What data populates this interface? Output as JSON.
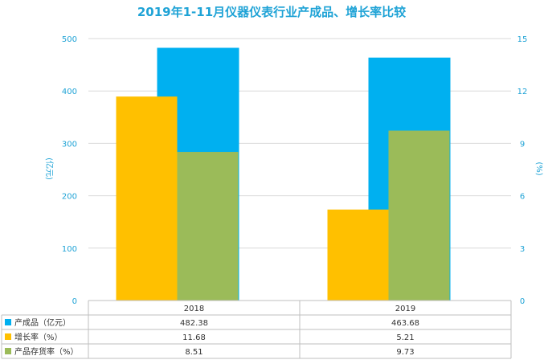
{
  "chart_data": {
    "type": "bar",
    "title": "2019年1-11月仪器仪表行业产成品、增长率比较",
    "categories": [
      "2018",
      "2019"
    ],
    "y_left": {
      "label": "(亿元)",
      "ylim": [
        0,
        500
      ],
      "ticks": [
        "0",
        "100",
        "200",
        "300",
        "400",
        "500"
      ]
    },
    "y_right": {
      "label": "(%)",
      "ylim": [
        0,
        15
      ],
      "ticks": [
        "0",
        "3",
        "6",
        "9",
        "12",
        "15"
      ]
    },
    "series": [
      {
        "name": "产成品（亿元）",
        "axis": "left",
        "color": "#00b0f0",
        "values": [
          482.38,
          463.68
        ],
        "labels": [
          "482.38",
          "463.68"
        ]
      },
      {
        "name": "增长率（%）",
        "axis": "right",
        "color": "#ffc000",
        "values": [
          11.68,
          5.21
        ],
        "labels": [
          "11.68",
          "5.21"
        ]
      },
      {
        "name": "产品存货率（%）",
        "axis": "right",
        "color": "#9bbb59",
        "values": [
          8.51,
          9.73
        ],
        "labels": [
          "8.51",
          "9.73"
        ]
      }
    ],
    "grid": true,
    "legend": "data-table"
  }
}
